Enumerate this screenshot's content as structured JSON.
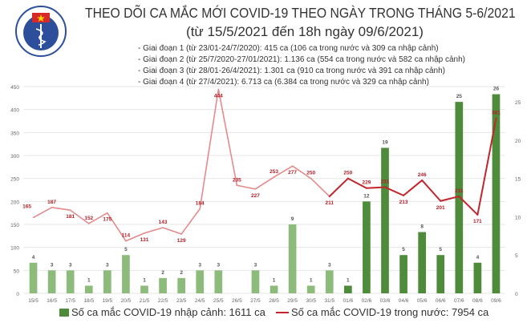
{
  "header": {
    "title": "THEO DÕI CA MẮC MỚI COVID-19 THEO NGÀY TRONG THÁNG 5-6/2021",
    "subtitle": "(từ 15/5/2021 đến 18h ngày 09/6/2021)",
    "phases": [
      "- Giai đoạn 1 (từ 23/01-24/7/2020): 415 ca (106 ca trong nước và 309 ca nhập cảnh)",
      "- Giai đoạn 2 (từ 25/7/2020-27/01/2021): 1.136 ca (554 ca trong nước và 582 ca nhập cảnh)",
      "- Giai đoạn 3 (từ 28/01-26/4/2021): 1.301 ca (910 ca trong nước và 391 ca nhập cảnh)",
      "- Giai đoạn 4 (từ 27/4/2021): 6.713 ca (6.384 ca trong nước và 329 ca nhập cảnh)"
    ],
    "logo_text": "BỘ Y TẾ · MINISTRY OF HEALTH"
  },
  "chart_data": {
    "type": "bar+line",
    "categories": [
      "15/5",
      "16/5",
      "17/5",
      "18/5",
      "19/5",
      "20/5",
      "21/5",
      "22/5",
      "23/5",
      "24/5",
      "25/5",
      "26/5",
      "27/5",
      "28/5",
      "29/5",
      "30/5",
      "31/5",
      "01/6",
      "02/6",
      "03/6",
      "04/6",
      "05/6",
      "06/6",
      "07/6",
      "08/6",
      "09/6"
    ],
    "series": [
      {
        "name": "Số ca mắc COVID-19 nhập cảnh: 1611 ca",
        "type": "bar",
        "axis": "right",
        "values": [
          4,
          3,
          3,
          1,
          3,
          5,
          1,
          2,
          2,
          3,
          3,
          0,
          3,
          1,
          9,
          1,
          3,
          1,
          12,
          19,
          5,
          8,
          5,
          25,
          4,
          26
        ],
        "color": "#4e8b3a",
        "color_light": "#8dbb7c"
      },
      {
        "name": "Số ca mắc COVID-19 trong nước: 7954 ca",
        "type": "line",
        "axis": "left",
        "values": [
          165,
          187,
          181,
          152,
          175,
          114,
          131,
          143,
          129,
          184,
          444,
          235,
          227,
          253,
          277,
          250,
          211,
          250,
          229,
          231,
          213,
          246,
          201,
          211,
          171,
          381
        ],
        "color": "#c0262c",
        "color_light": "#e58a8c"
      }
    ],
    "left_axis": {
      "ylim": [
        0,
        450
      ],
      "ticks": [
        "0",
        "50",
        "100",
        "150",
        "200",
        "250",
        "300",
        "350",
        "400",
        "450"
      ]
    },
    "right_axis": {
      "ylim": [
        0,
        27
      ],
      "ticks": [
        "0",
        "5",
        "10",
        "15",
        "20",
        "25"
      ]
    },
    "grid": true,
    "legend": "bottom"
  }
}
